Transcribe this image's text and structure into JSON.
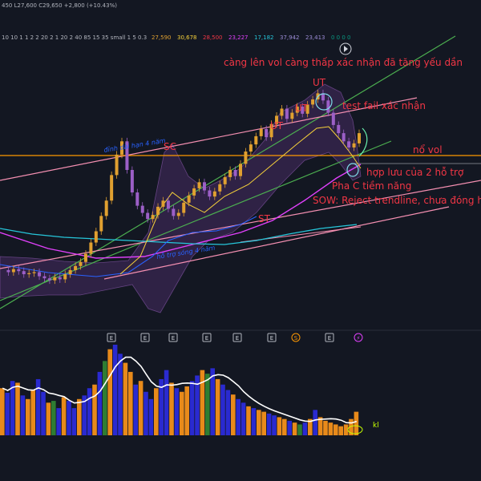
{
  "header": {
    "ohlc_line": "450  L27,600  C29,650  +2,800 (+10.43%)",
    "indicator_line": "10 10 1 1 2 2 20 2 1 20 2 40 85 15 35 small 1 5 0.3",
    "indicator_values": [
      {
        "text": "27,590",
        "color": "#e0a030"
      },
      {
        "text": "30,678",
        "color": "#f7d23a"
      },
      {
        "text": "28,500",
        "color": "#f23645"
      },
      {
        "text": "23,227",
        "color": "#e040fb"
      },
      {
        "text": "17,182",
        "color": "#26c6da"
      },
      {
        "text": "37,942",
        "color": "#9c8cd6"
      },
      {
        "text": "23,413",
        "color": "#9c8cd6"
      },
      {
        "text": "0 0 0 0",
        "color": "#089981"
      }
    ]
  },
  "annotations": {
    "top_note": "càng lên vol càng thấp xác nhận đã tăng yếu dần",
    "ut_top": "UT",
    "ut_mid": "UT",
    "ut_low": "UT",
    "sc": "SC",
    "st": "ST",
    "test_fail": "test fail xác nhận",
    "no_vol": "nổ vol",
    "hop_luu": "hợp lưu của 2 hỗ trợ",
    "pha_c": "Pha C tiềm năng",
    "sow": "SOW: Reject trendline, chưa đóng hết",
    "dinh_dai_han": "đỉnh dài hạn 4 năm",
    "ho_tro_song": "hỗ trợ sóng 4 năm",
    "kl": "kl"
  },
  "event_markers": [
    "E",
    "E",
    "E",
    "E",
    "E",
    "E",
    "S",
    "E",
    "⚡"
  ],
  "colors": {
    "background": "#131722",
    "up": "#e0a030",
    "down": "#9c5fc7",
    "annotation": "#f23645",
    "trendline_green": "#4caf50",
    "trendline_pink": "#f48fb1",
    "hline_orange": "#ff9800",
    "ma_purple": "#e040fb",
    "ma_cyan": "#26c6da",
    "vol_up": "#e88a1a",
    "vol_down": "#2a2ad0",
    "vol_spike": "#2e7d32",
    "vol_line": "#ffffff"
  },
  "chart_data": {
    "type": "candlestick",
    "price_series_approx": [
      14.2,
      14.0,
      14.3,
      14.1,
      13.8,
      13.9,
      14.0,
      13.6,
      13.4,
      13.2,
      13.5,
      13.3,
      13.8,
      14.2,
      14.6,
      15.0,
      15.8,
      16.9,
      18.0,
      19.5,
      21.0,
      23.5,
      25.5,
      26.8,
      24.0,
      21.8,
      20.5,
      19.8,
      19.2,
      19.6,
      20.4,
      21.0,
      20.2,
      19.5,
      19.8,
      20.8,
      21.5,
      22.2,
      22.8,
      22.0,
      21.4,
      21.9,
      22.6,
      23.3,
      24.0,
      23.4,
      24.6,
      25.8,
      26.5,
      27.3,
      28.0,
      27.2,
      28.5,
      29.3,
      30.0,
      29.0,
      29.6,
      30.2,
      29.5,
      30.4,
      30.9,
      31.5,
      30.8,
      29.6,
      28.4,
      27.6,
      26.8,
      26.2,
      26.6,
      27.6
    ]
  },
  "volume_data": {
    "type": "bar",
    "values_approx": [
      52,
      47,
      60,
      58,
      44,
      40,
      50,
      62,
      48,
      36,
      38,
      30,
      42,
      38,
      30,
      40,
      44,
      52,
      56,
      70,
      82,
      95,
      100,
      90,
      80,
      70,
      56,
      60,
      48,
      40,
      52,
      62,
      72,
      58,
      52,
      48,
      54,
      60,
      66,
      72,
      68,
      74,
      62,
      56,
      50,
      45,
      40,
      36,
      32,
      30,
      28,
      26,
      24,
      22,
      20,
      18,
      16,
      14,
      12,
      14,
      18,
      28,
      20,
      16,
      14,
      12,
      10,
      12,
      18,
      26
    ]
  }
}
